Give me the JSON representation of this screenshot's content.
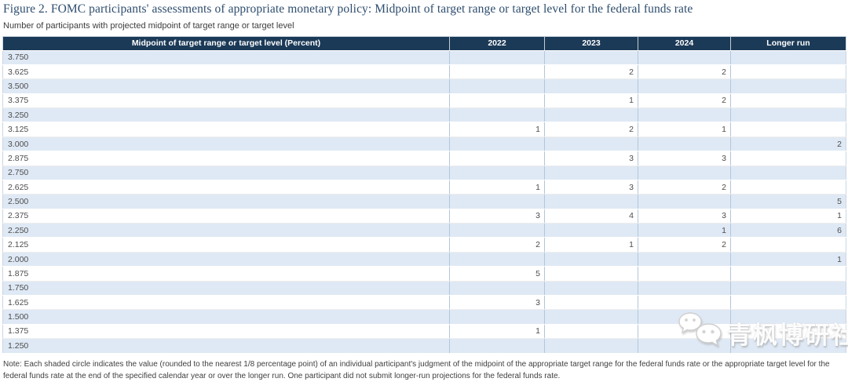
{
  "figure": {
    "title": "Figure 2. FOMC participants' assessments of appropriate monetary policy: Midpoint of target range or target level for the federal funds rate",
    "subtitle": "Number of participants with projected midpoint of target range or target level",
    "note": "Note: Each shaded circle indicates the value (rounded to the nearest 1/8 percentage point) of an individual participant's judgment of the midpoint of the appropriate target range for the federal funds rate or the appropriate target level for the federal funds rate at the end of the specified calendar year or over the longer run. One participant did not submit longer-run projections for the federal funds rate."
  },
  "chart_data": {
    "type": "table",
    "columns": [
      "Midpoint of target range or target level (Percent)",
      "2022",
      "2023",
      "2024",
      "Longer run"
    ],
    "rows": [
      [
        "3.750",
        "",
        "",
        "",
        ""
      ],
      [
        "3.625",
        "",
        "2",
        "2",
        ""
      ],
      [
        "3.500",
        "",
        "",
        "",
        ""
      ],
      [
        "3.375",
        "",
        "1",
        "2",
        ""
      ],
      [
        "3.250",
        "",
        "",
        "",
        ""
      ],
      [
        "3.125",
        "1",
        "2",
        "1",
        ""
      ],
      [
        "3.000",
        "",
        "",
        "",
        "2"
      ],
      [
        "2.875",
        "",
        "3",
        "3",
        ""
      ],
      [
        "2.750",
        "",
        "",
        "",
        ""
      ],
      [
        "2.625",
        "1",
        "3",
        "2",
        ""
      ],
      [
        "2.500",
        "",
        "",
        "",
        "5"
      ],
      [
        "2.375",
        "3",
        "4",
        "3",
        "1"
      ],
      [
        "2.250",
        "",
        "",
        "1",
        "6"
      ],
      [
        "2.125",
        "2",
        "1",
        "2",
        ""
      ],
      [
        "2.000",
        "",
        "",
        "",
        "1"
      ],
      [
        "1.875",
        "5",
        "",
        "",
        ""
      ],
      [
        "1.750",
        "",
        "",
        "",
        ""
      ],
      [
        "1.625",
        "3",
        "",
        "",
        ""
      ],
      [
        "1.500",
        "",
        "",
        "",
        ""
      ],
      [
        "1.375",
        "1",
        "",
        "",
        ""
      ],
      [
        "1.250",
        "",
        "",
        "",
        ""
      ]
    ]
  },
  "watermark": {
    "text": "青枫博研社",
    "icon": "wechat-icon"
  },
  "colors": {
    "header_bg": "#1b3a57",
    "row_shaded": "#dfe9f5",
    "gridline": "#b3c6d9",
    "title_text": "#2e4d6e"
  }
}
